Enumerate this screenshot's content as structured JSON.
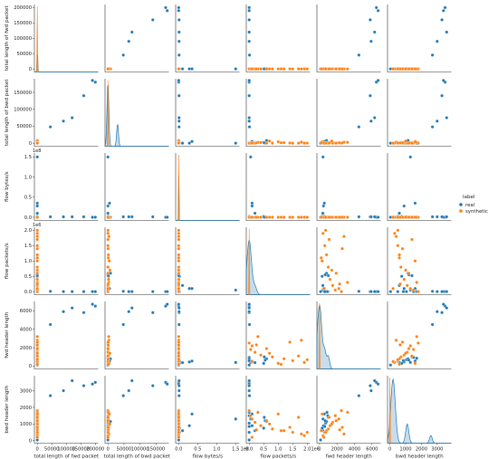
{
  "chart_data": {
    "type": "scatter",
    "kind": "pairplot",
    "variables": [
      "total length of fwd packet",
      "total length of bwd packet",
      "flow bytes/s",
      "flow packets/s",
      "fwd header length",
      "bwd header length"
    ],
    "diagonal": "kde",
    "legend": {
      "title": "label",
      "placement": "right",
      "entries": [
        {
          "name": "real",
          "color": "#1f77b4"
        },
        {
          "name": "synthetic",
          "color": "#ff7f0e"
        }
      ]
    },
    "axes": [
      {
        "name": "total length of fwd packet",
        "range": [
          -10000,
          210000
        ],
        "ticks": [
          0,
          50000,
          100000,
          150000,
          200000
        ],
        "tick_labels": [
          "0",
          "50000",
          "100000",
          "150000",
          "200000"
        ],
        "exponent": ""
      },
      {
        "name": "total length of bwd packet",
        "range": [
          -9000,
          190000
        ],
        "ticks": [
          0,
          50000,
          100000,
          150000
        ],
        "tick_labels": [
          "0",
          "50000",
          "100000",
          "150000"
        ],
        "exponent": ""
      },
      {
        "name": "flow bytes/s",
        "range": [
          -0.08,
          1.6
        ],
        "ticks": [
          0.0,
          0.5,
          1.0,
          1.5
        ],
        "tick_labels": [
          "0.0",
          "0.5",
          "1.0",
          "1.5"
        ],
        "exponent": "1e8"
      },
      {
        "name": "flow packets/s",
        "range": [
          -0.1,
          2.1
        ],
        "ticks": [
          0.0,
          0.5,
          1.0,
          1.5,
          2.0
        ],
        "tick_labels": [
          "0.0",
          "0.5",
          "1.0",
          "1.5",
          "2.0"
        ],
        "exponent": "1e6"
      },
      {
        "name": "fwd header length",
        "range": [
          -300,
          7000
        ],
        "ticks": [
          0,
          2000,
          4000,
          6000
        ],
        "tick_labels": [
          "0",
          "2000",
          "4000",
          "6000"
        ],
        "exponent": ""
      },
      {
        "name": "bwd header length",
        "range": [
          -150,
          3900
        ],
        "ticks": [
          0,
          1000,
          2000,
          3000
        ],
        "tick_labels": [
          "0",
          "1000",
          "2000",
          "3000"
        ],
        "exponent": ""
      }
    ],
    "series": [
      {
        "name": "real",
        "color": "#1f77b4",
        "points": [
          [
            200000,
            180000,
            0.0,
            0.0,
            6500,
            3500
          ],
          [
            190000,
            185000,
            0.0,
            0.0,
            6700,
            3400
          ],
          [
            160000,
            140000,
            0.01,
            0.0,
            5800,
            3300
          ],
          [
            120000,
            75000,
            0.01,
            0.0,
            6300,
            3600
          ],
          [
            90000,
            65000,
            0.01,
            0.0,
            5900,
            3000
          ],
          [
            45000,
            48000,
            0.01,
            0.01,
            4500,
            2700
          ],
          [
            0,
            0,
            1.5,
            0.05,
            400,
            1300
          ],
          [
            0,
            5000,
            0.35,
            0.1,
            550,
            1600
          ],
          [
            0,
            0,
            0.28,
            0.1,
            450,
            900
          ],
          [
            0,
            0,
            0.1,
            0.2,
            380,
            600
          ],
          [
            0,
            2000,
            0.02,
            0.5,
            300,
            750
          ],
          [
            0,
            0,
            0.01,
            0.0,
            700,
            1050
          ],
          [
            0,
            8000,
            0.0,
            0.6,
            800,
            1150
          ],
          [
            0,
            0,
            0.0,
            0.55,
            650,
            1200
          ],
          [
            0,
            1000,
            0.0,
            0.52,
            1000,
            1400
          ],
          [
            0,
            0,
            0.02,
            0.0,
            550,
            500
          ],
          [
            0,
            0,
            0.0,
            0.0,
            950,
            1500
          ],
          [
            0,
            0,
            0.0,
            0.0,
            850,
            1700
          ],
          [
            0,
            0,
            0.0,
            0.0,
            120,
            40
          ],
          [
            0,
            0,
            0.0,
            0.0,
            600,
            850
          ]
        ]
      },
      {
        "name": "synthetic",
        "color": "#ff7f0e",
        "points": [
          [
            0,
            0,
            0.0,
            0.0,
            2500,
            1800
          ],
          [
            0,
            500,
            0.0,
            0.05,
            1800,
            1500
          ],
          [
            0,
            1000,
            0.0,
            0.1,
            2200,
            1300
          ],
          [
            0,
            0,
            0.0,
            0.2,
            1500,
            1100
          ],
          [
            0,
            2000,
            0.0,
            0.4,
            1200,
            900
          ],
          [
            0,
            0,
            0.0,
            0.8,
            1000,
            700
          ],
          [
            0,
            1500,
            0.0,
            1.2,
            800,
            600
          ],
          [
            0,
            0,
            0.0,
            1.5,
            600,
            500
          ],
          [
            0,
            3000,
            0.0,
            1.8,
            2800,
            400
          ],
          [
            0,
            0,
            0.0,
            1.9,
            400,
            300
          ],
          [
            0,
            2500,
            0.0,
            0.3,
            3200,
            1700
          ],
          [
            0,
            0,
            0.0,
            0.6,
            1900,
            1200
          ],
          [
            0,
            4000,
            0.0,
            1.0,
            300,
            1600
          ],
          [
            0,
            500,
            0.0,
            1.4,
            2600,
            800
          ],
          [
            0,
            0,
            0.0,
            0.1,
            500,
            200
          ],
          [
            0,
            6000,
            0.0,
            0.7,
            1400,
            1000
          ],
          [
            0,
            1200,
            0.0,
            1.1,
            200,
            600
          ],
          [
            0,
            0,
            0.0,
            1.7,
            1100,
            1400
          ],
          [
            0,
            800,
            0.0,
            0.25,
            2300,
            650
          ],
          [
            0,
            300,
            0.0,
            2.0,
            700,
            500
          ]
        ]
      }
    ]
  }
}
